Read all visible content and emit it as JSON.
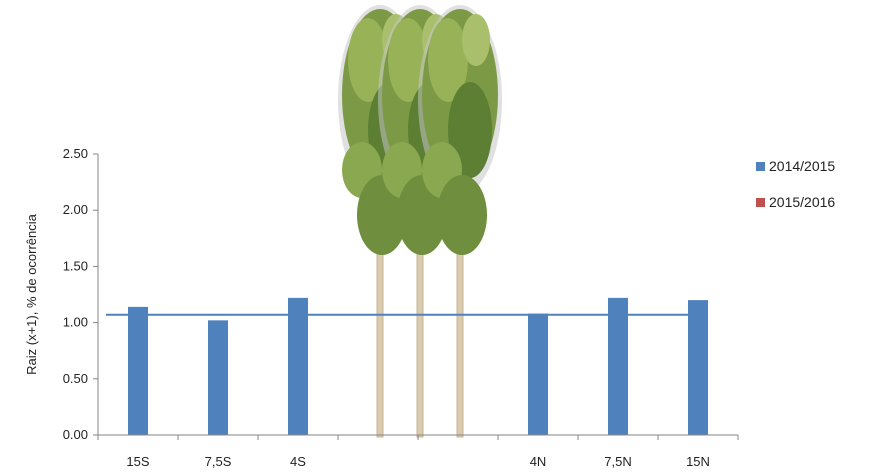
{
  "chart_data": {
    "type": "bar",
    "categories": [
      "15S",
      "7,5S",
      "4S",
      "",
      "",
      "4N",
      "7,5N",
      "15N"
    ],
    "series": [
      {
        "name": "2014/2015",
        "color": "#4f81bd",
        "values": [
          1.14,
          1.02,
          1.22,
          null,
          null,
          1.08,
          1.22,
          1.2
        ]
      },
      {
        "name": "2015/2016",
        "color": "#c0504d",
        "values": [
          null,
          null,
          null,
          null,
          null,
          null,
          null,
          null
        ]
      }
    ],
    "reference_line": {
      "value": 1.07,
      "color": "#4f81bd"
    },
    "ylabel": "Raiz (x+1), % de ocorrência",
    "xlabel": "",
    "ylim": [
      0,
      2.5
    ],
    "yticks": [
      "0.00",
      "0.50",
      "1.00",
      "1.50",
      "2.00",
      "2.50"
    ],
    "grid": false,
    "legend_position": "right",
    "background_illustration": "poplar-trees"
  }
}
